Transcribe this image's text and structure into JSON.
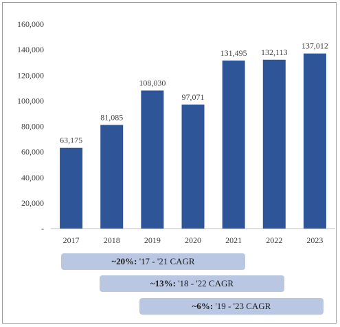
{
  "chart_data": {
    "type": "bar",
    "categories": [
      "2017",
      "2018",
      "2019",
      "2020",
      "2021",
      "2022",
      "2023"
    ],
    "values": [
      63175,
      81085,
      108030,
      97071,
      131495,
      132113,
      137012
    ],
    "data_labels": [
      "63,175",
      "81,085",
      "108,030",
      "97,071",
      "131,495",
      "132,113",
      "137,012"
    ],
    "y_ticks": [
      "-",
      "20,000",
      "40,000",
      "60,000",
      "80,000",
      "100,000",
      "120,000",
      "140,000",
      "160,000"
    ],
    "ylim": [
      0,
      160000
    ],
    "grid": false,
    "bar_color": "#2e5597",
    "title": "",
    "xlabel": "",
    "ylabel": ""
  },
  "cagr": [
    {
      "bold": "~20%:",
      "text": " '17 - '21 CAGR"
    },
    {
      "bold": "~13%:",
      "text": " '18 - '22 CAGR"
    },
    {
      "bold": "~6%:",
      "text": " '19 - '23 CAGR"
    }
  ],
  "colors": {
    "cagr_fill": "#b9c7e2",
    "axis": "#bfbfbf"
  }
}
